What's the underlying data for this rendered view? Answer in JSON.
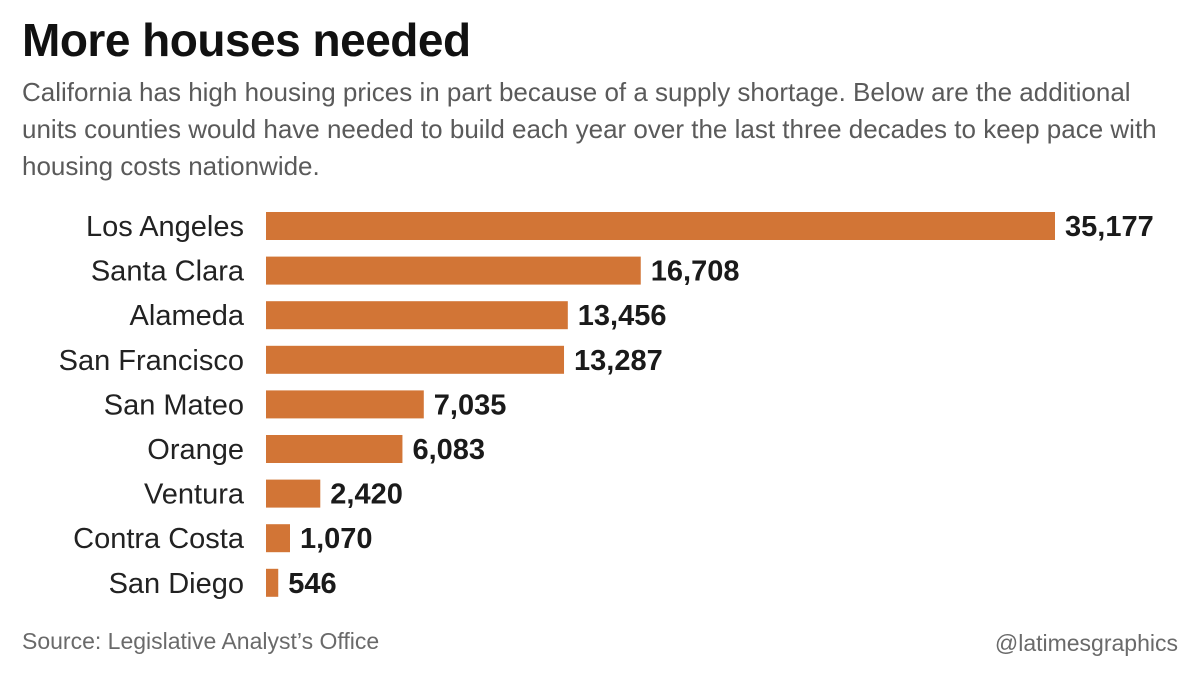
{
  "header": {
    "title": "More houses needed",
    "subtitle": "California has high housing prices in part because of a supply shortage. Below are the additional units counties would have needed to build each year over the last three decades to keep pace with housing costs nationwide."
  },
  "footer": {
    "source": "Source: Legislative Analyst’s Office",
    "credit": "@latimesgraphics"
  },
  "colors": {
    "bar": "#D27536"
  },
  "chart_data": {
    "type": "bar",
    "orientation": "horizontal",
    "categories": [
      "Los Angeles",
      "Santa Clara",
      "Alameda",
      "San Francisco",
      "San Mateo",
      "Orange",
      "Ventura",
      "Contra Costa",
      "San Diego"
    ],
    "values": [
      35177,
      16708,
      13456,
      13287,
      7035,
      6083,
      2420,
      1070,
      546
    ],
    "value_labels": [
      "35,177",
      "16,708",
      "13,456",
      "13,287",
      "7,035",
      "6,083",
      "2,420",
      "1,070",
      "546"
    ],
    "xlim": [
      0,
      35177
    ],
    "grid": false,
    "legend": "none"
  }
}
